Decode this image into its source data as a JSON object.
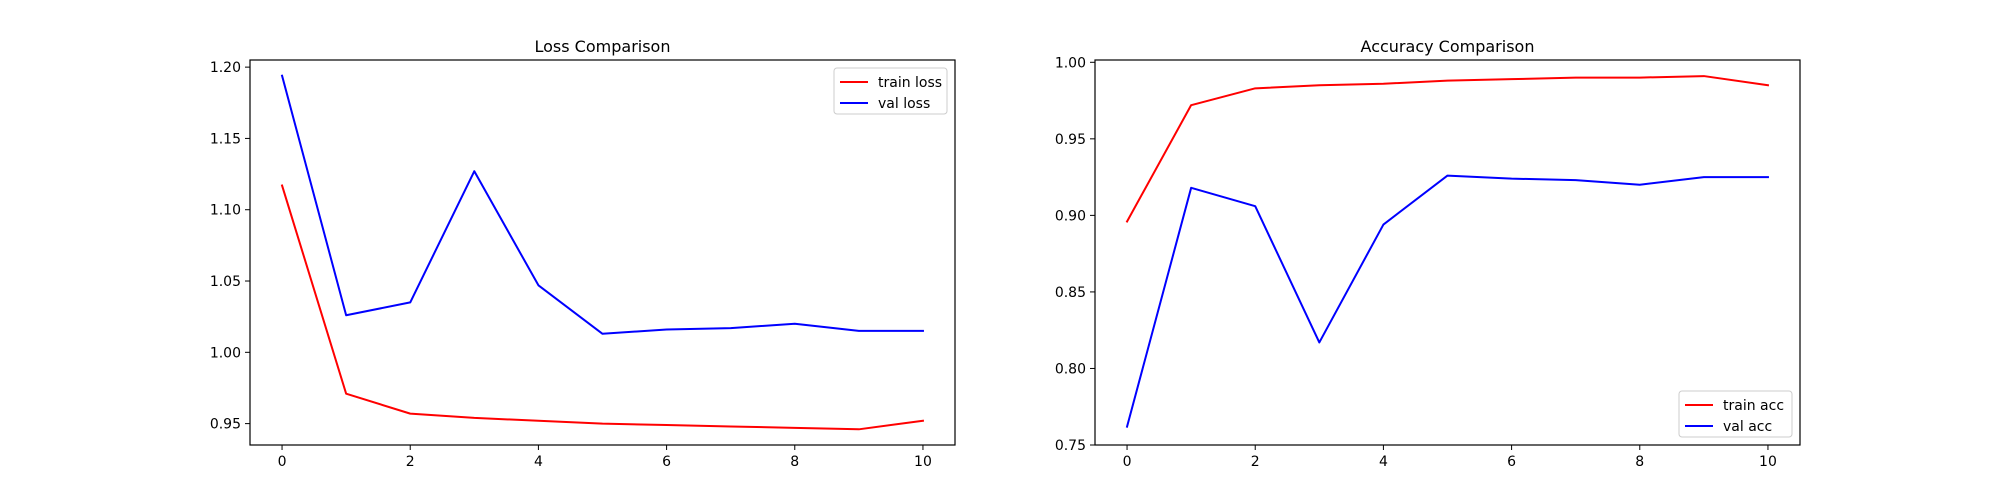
{
  "chart_data": [
    {
      "type": "line",
      "title": "Loss Comparison",
      "xlabel": "",
      "ylabel": "",
      "x": [
        0,
        1,
        2,
        3,
        4,
        5,
        6,
        7,
        8,
        9,
        10
      ],
      "xlim": [
        -0.5,
        10.5
      ],
      "ylim": [
        0.935,
        1.205
      ],
      "xticks": [
        0,
        2,
        4,
        6,
        8,
        10
      ],
      "yticks": [
        0.95,
        1.0,
        1.05,
        1.1,
        1.15,
        1.2
      ],
      "ytick_decimals": 2,
      "legend": "top-right",
      "grid": false,
      "series": [
        {
          "name": "train loss",
          "color": "#ff0000",
          "values": [
            1.117,
            0.971,
            0.957,
            0.954,
            0.952,
            0.95,
            0.949,
            0.948,
            0.947,
            0.946,
            0.952
          ]
        },
        {
          "name": "val loss",
          "color": "#0000ff",
          "values": [
            1.194,
            1.026,
            1.035,
            1.127,
            1.047,
            1.013,
            1.016,
            1.017,
            1.02,
            1.015,
            1.015
          ]
        }
      ]
    },
    {
      "type": "line",
      "title": "Accuracy Comparison",
      "xlabel": "",
      "ylabel": "",
      "x": [
        0,
        1,
        2,
        3,
        4,
        5,
        6,
        7,
        8,
        9,
        10
      ],
      "xlim": [
        -0.5,
        10.5
      ],
      "ylim": [
        0.75,
        1.0015
      ],
      "xticks": [
        0,
        2,
        4,
        6,
        8,
        10
      ],
      "yticks": [
        0.75,
        0.8,
        0.85,
        0.9,
        0.95,
        1.0
      ],
      "ytick_decimals": 2,
      "legend": "bottom-right",
      "grid": false,
      "series": [
        {
          "name": "train acc",
          "color": "#ff0000",
          "values": [
            0.896,
            0.972,
            0.983,
            0.985,
            0.986,
            0.988,
            0.989,
            0.99,
            0.99,
            0.991,
            0.985
          ]
        },
        {
          "name": "val acc",
          "color": "#0000ff",
          "values": [
            0.762,
            0.918,
            0.906,
            0.817,
            0.894,
            0.926,
            0.924,
            0.923,
            0.92,
            0.925,
            0.925
          ]
        }
      ]
    }
  ]
}
